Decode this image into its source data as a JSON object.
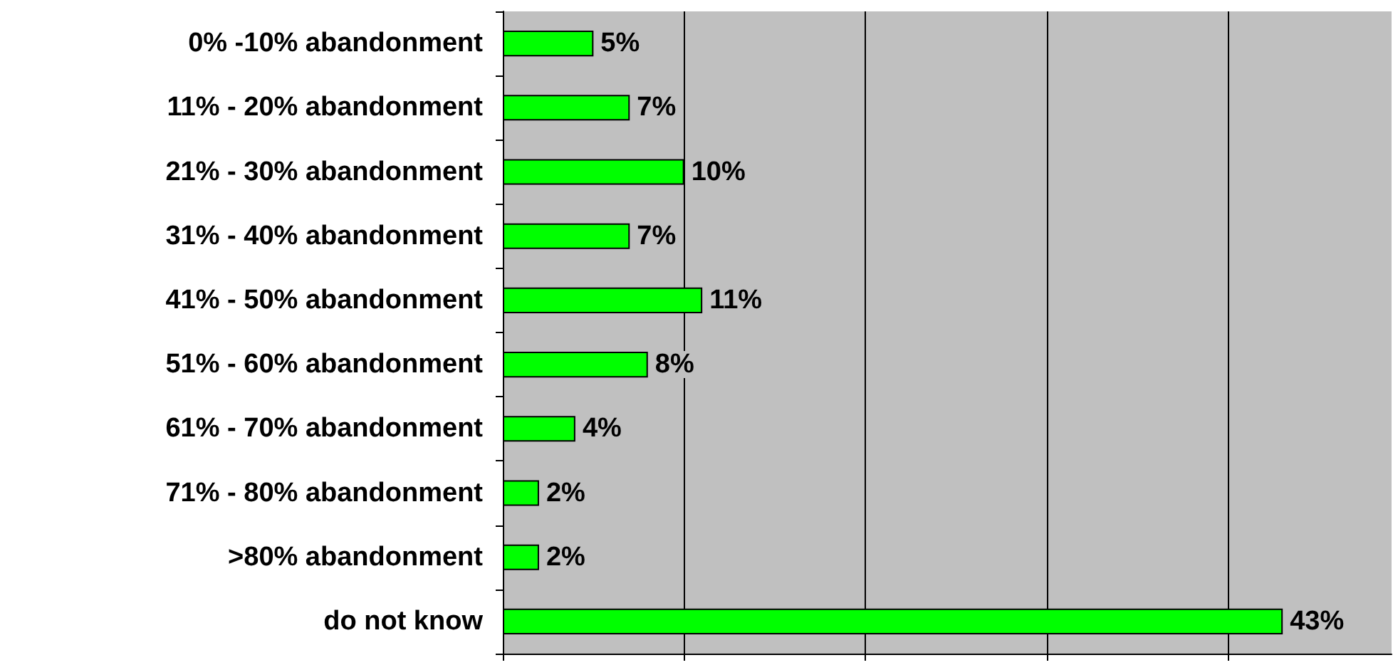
{
  "chart_data": {
    "type": "bar",
    "orientation": "horizontal",
    "categories": [
      "0% -10% abandonment",
      "11% - 20% abandonment",
      "21% - 30% abandonment",
      "31% - 40% abandonment",
      "41% - 50% abandonment",
      "51% - 60% abandonment",
      "61% - 70% abandonment",
      "71% - 80% abandonment",
      ">80% abandonment",
      "do not know"
    ],
    "values": [
      5,
      7,
      10,
      7,
      11,
      8,
      4,
      2,
      2,
      43
    ],
    "value_labels": [
      "5%",
      "7%",
      "10%",
      "7%",
      "11%",
      "8%",
      "4%",
      "2%",
      "2%",
      "43%"
    ],
    "color": "#00ff00",
    "xlim": [
      0,
      49
    ],
    "xticks": [
      {
        "value": 0,
        "label": null
      },
      {
        "value": 10,
        "label": null
      },
      {
        "value": 20,
        "label": null
      },
      {
        "value": 30,
        "label": null
      },
      {
        "value": 40,
        "label": null
      }
    ],
    "grid": "x",
    "tick_labels": "y"
  }
}
